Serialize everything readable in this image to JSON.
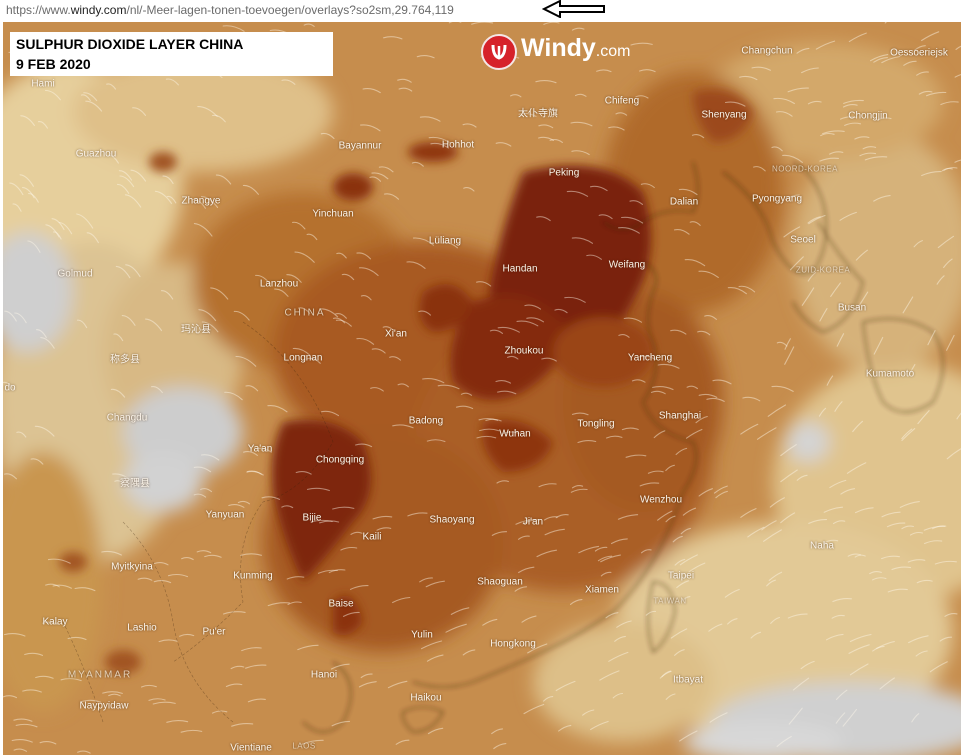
{
  "browser": {
    "url_prefix": "https://www.",
    "url_host": "windy.com",
    "url_path": "/nl/-Meer-lagen-tonen-toevoegen/overlays?so2sm,29.764,119"
  },
  "overlay_title": {
    "line1": "SULPHUR DIOXIDE LAYER CHINA",
    "line2": "9 FEB 2020"
  },
  "logo": {
    "brand": "Windy",
    "tld": ".com",
    "accent_color": "#d6222a"
  },
  "colors": {
    "high_concentration": "#7a2208",
    "medium_concentration": "#b86a2c",
    "low_concentration": "#e3c48c",
    "no_data": "#c7c7c7"
  },
  "places": [
    {
      "id": "hami",
      "name": "Hami"
    },
    {
      "id": "guazhou",
      "name": "Guazhou"
    },
    {
      "id": "zhangye",
      "name": "Zhangye"
    },
    {
      "id": "golmud",
      "name": "Golmud"
    },
    {
      "id": "lanzhou",
      "name": "Lanzhou"
    },
    {
      "id": "maqin",
      "name": "玛沁县"
    },
    {
      "id": "chengduo",
      "name": "称多县"
    },
    {
      "id": "longnan",
      "name": "Longnan"
    },
    {
      "id": "china",
      "name": "CHINA"
    },
    {
      "id": "do",
      "name": "do"
    },
    {
      "id": "changdu",
      "name": "Changdu"
    },
    {
      "id": "yaan",
      "name": "Ya'an"
    },
    {
      "id": "chayu",
      "name": "察隅县"
    },
    {
      "id": "yanyuan",
      "name": "Yanyuan"
    },
    {
      "id": "myitkyina",
      "name": "Myitkyina"
    },
    {
      "id": "kunming",
      "name": "Kunming"
    },
    {
      "id": "kalay",
      "name": "Kalay"
    },
    {
      "id": "lashio",
      "name": "Lashio"
    },
    {
      "id": "puer",
      "name": "Pu'er"
    },
    {
      "id": "myanmar",
      "name": "MYANMAR"
    },
    {
      "id": "naypyidaw",
      "name": "Naypyidaw"
    },
    {
      "id": "vientiane",
      "name": "Vientiane"
    },
    {
      "id": "laos",
      "name": "LAOS"
    },
    {
      "id": "hanoi",
      "name": "Hanoi"
    },
    {
      "id": "baise",
      "name": "Baise"
    },
    {
      "id": "bijie",
      "name": "Bijie"
    },
    {
      "id": "kaili",
      "name": "Kaili"
    },
    {
      "id": "chongqing",
      "name": "Chongqing"
    },
    {
      "id": "badong",
      "name": "Badong"
    },
    {
      "id": "xian",
      "name": "Xi'an"
    },
    {
      "id": "yinchuan",
      "name": "Yinchuan"
    },
    {
      "id": "bayannur",
      "name": "Bayannur"
    },
    {
      "id": "hohhot",
      "name": "Hohhot"
    },
    {
      "id": "taipusi",
      "name": "太仆寺旗"
    },
    {
      "id": "chifeng",
      "name": "Chifeng"
    },
    {
      "id": "lulang",
      "name": "Lüliang"
    },
    {
      "id": "handan",
      "name": "Handan"
    },
    {
      "id": "peking",
      "name": "Peking"
    },
    {
      "id": "weifang",
      "name": "Weifang"
    },
    {
      "id": "dalian",
      "name": "Dalian"
    },
    {
      "id": "shenyang",
      "name": "Shenyang"
    },
    {
      "id": "changchun",
      "name": "Changchun"
    },
    {
      "id": "oessoeriejsk",
      "name": "Oessoeriejsk"
    },
    {
      "id": "chongjin",
      "name": "Chongjin"
    },
    {
      "id": "noordkorea",
      "name": "NOORD-KOREA"
    },
    {
      "id": "pyongyang",
      "name": "Pyongyang"
    },
    {
      "id": "seoel",
      "name": "Seoel"
    },
    {
      "id": "zuidkorea",
      "name": "ZUID-KOREA"
    },
    {
      "id": "busan",
      "name": "Busan"
    },
    {
      "id": "kumamoto",
      "name": "Kumamoto"
    },
    {
      "id": "zhoukou",
      "name": "Zhoukou"
    },
    {
      "id": "yancheng",
      "name": "Yancheng"
    },
    {
      "id": "shanghai",
      "name": "Shanghai"
    },
    {
      "id": "tongling",
      "name": "Tongling"
    },
    {
      "id": "wuhan",
      "name": "Wuhan"
    },
    {
      "id": "shaoyang",
      "name": "Shaoyang"
    },
    {
      "id": "jian",
      "name": "Ji'an"
    },
    {
      "id": "wenzhou",
      "name": "Wenzhou"
    },
    {
      "id": "naha",
      "name": "Naha"
    },
    {
      "id": "taipei",
      "name": "Taipei"
    },
    {
      "id": "taiwan",
      "name": "TAIWAN"
    },
    {
      "id": "xiamen",
      "name": "Xiamen"
    },
    {
      "id": "shaoguan",
      "name": "Shaoguan"
    },
    {
      "id": "yulin",
      "name": "Yulin"
    },
    {
      "id": "hongkong",
      "name": "Hongkong"
    },
    {
      "id": "haikou",
      "name": "Haikou"
    },
    {
      "id": "itbayat",
      "name": "Itbayat"
    }
  ]
}
